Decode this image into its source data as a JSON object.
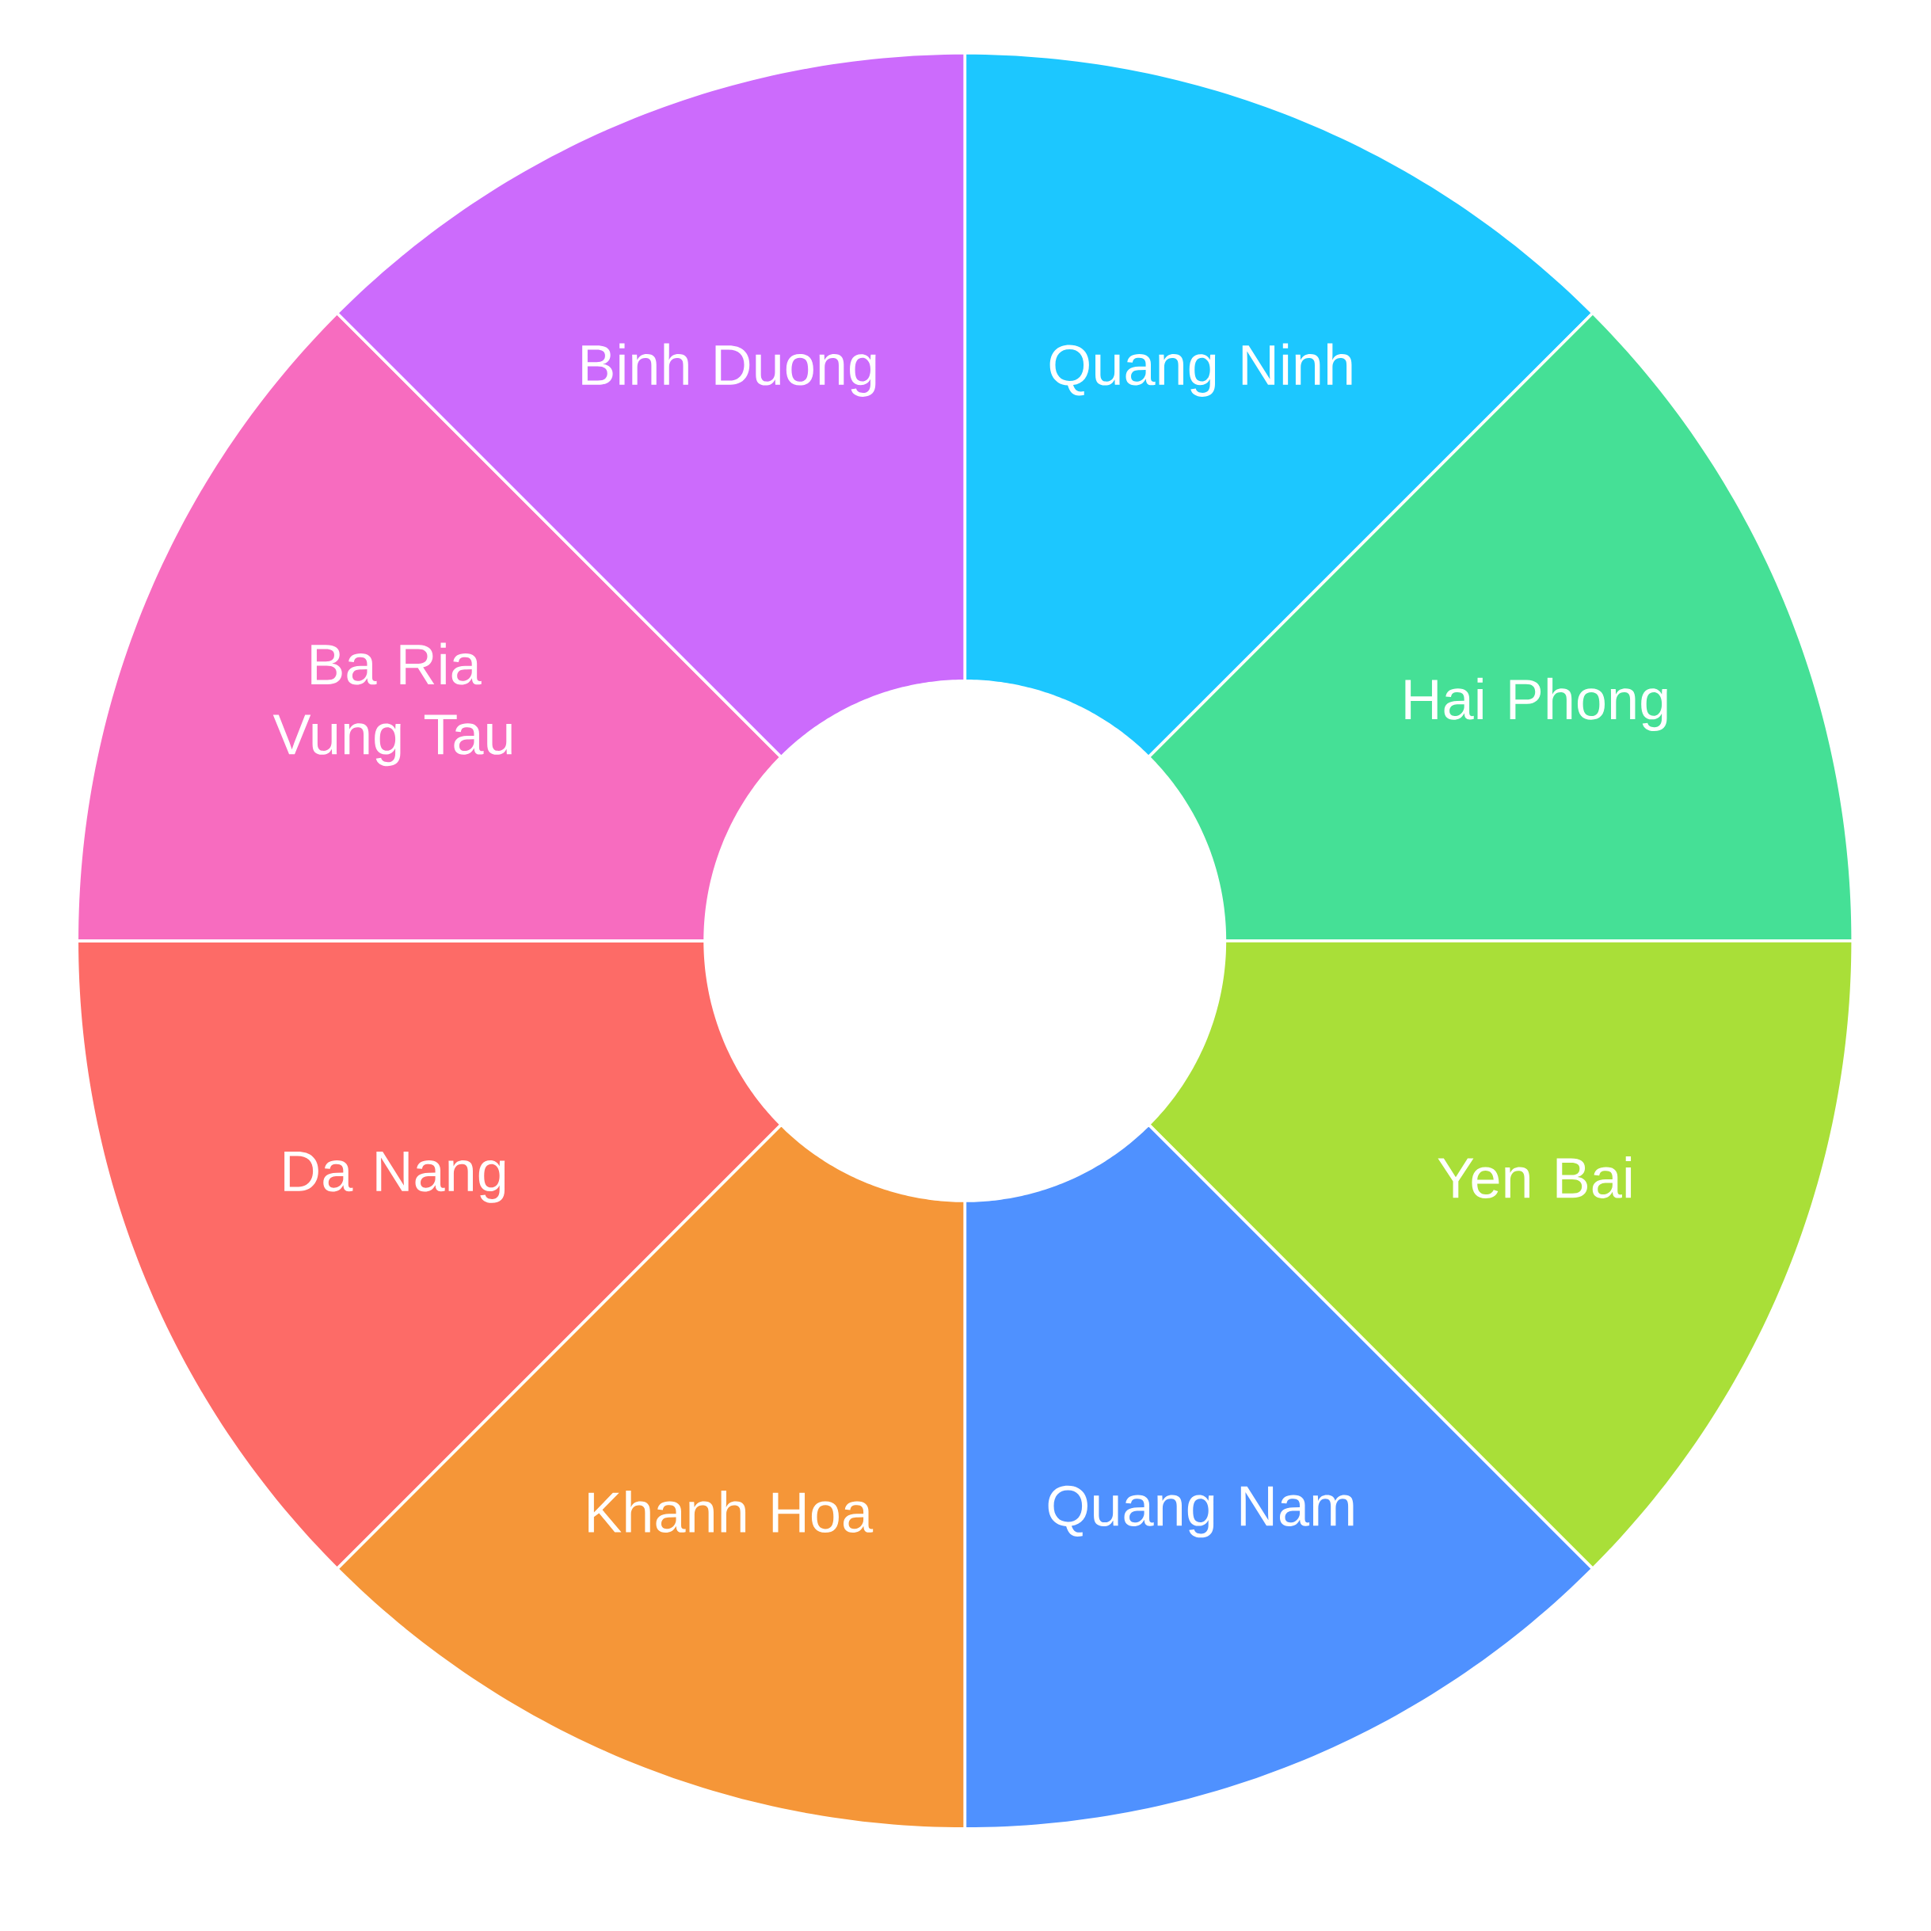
{
  "chart_data": {
    "type": "donut",
    "categories": [
      "Quang Ninh",
      "Hai Phong",
      "Yen Bai",
      "Quang Nam",
      "Khanh Hoa",
      "Da Nang",
      "Ba Ria Vung Tau",
      "Binh Duong"
    ],
    "values": [
      12.5,
      12.5,
      12.5,
      12.5,
      12.5,
      12.5,
      12.5,
      12.5
    ],
    "colors": [
      "#1cc7ff",
      "#45e096",
      "#a9df38",
      "#4f91ff",
      "#f59638",
      "#fd6b67",
      "#f76cbf",
      "#cc6bfc"
    ]
  }
}
